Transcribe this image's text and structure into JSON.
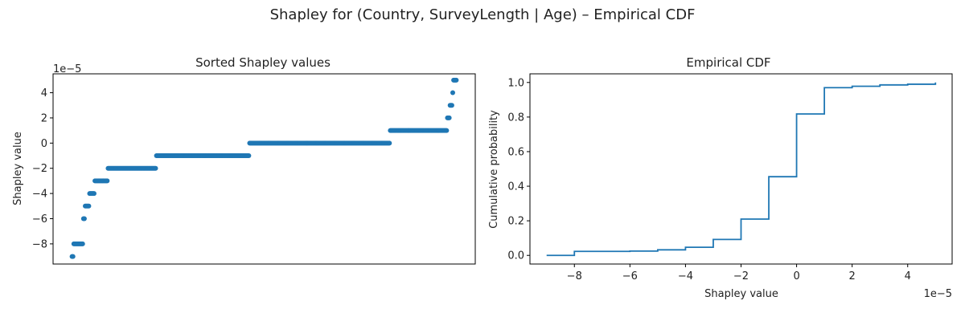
{
  "figure": {
    "title": "Shapley for (Country, SurveyLength | Age) – Empirical CDF"
  },
  "chart_data": [
    {
      "type": "scatter",
      "title": "Sorted Shapley values",
      "xlabel": "",
      "ylabel": "Shapley value",
      "y_offset_text": "1e−5",
      "y_scale_factor": "1e-5",
      "xticks": "hidden",
      "ylim": [
        -9.6,
        5.5
      ],
      "yticks": [
        -8,
        -6,
        -4,
        -2,
        0,
        2,
        4
      ],
      "ytick_labels": [
        "−8",
        "−6",
        "−4",
        "−2",
        "0",
        "2",
        "4"
      ],
      "color": "#1f77b4",
      "sorted_counts": [
        {
          "value": -9,
          "count": 2
        },
        {
          "value": -8,
          "count": 11
        },
        {
          "value": -6,
          "count": 2
        },
        {
          "value": -5,
          "count": 5
        },
        {
          "value": -4,
          "count": 6
        },
        {
          "value": -3,
          "count": 15
        },
        {
          "value": -2,
          "count": 55
        },
        {
          "value": -1,
          "count": 106
        },
        {
          "value": 0,
          "count": 160
        },
        {
          "value": 1,
          "count": 65
        },
        {
          "value": 2,
          "count": 3
        },
        {
          "value": 3,
          "count": 3
        },
        {
          "value": 4,
          "count": 1
        },
        {
          "value": 5,
          "count": 4
        }
      ],
      "grid": false
    },
    {
      "type": "line",
      "step": "post",
      "title": "Empirical CDF",
      "xlabel": "Shapley value",
      "ylabel": "Cumulative probability",
      "x_offset_text": "1e−5",
      "x_scale_factor": "1e-5",
      "xlim": [
        -9.6,
        5.6
      ],
      "ylim": [
        -0.05,
        1.05
      ],
      "xticks": [
        -8,
        -6,
        -4,
        -2,
        0,
        2,
        4
      ],
      "xtick_labels": [
        "−8",
        "−6",
        "−4",
        "−2",
        "0",
        "2",
        "4"
      ],
      "yticks": [
        0.0,
        0.2,
        0.4,
        0.6,
        0.8,
        1.0
      ],
      "ytick_labels": [
        "0.0",
        "0.2",
        "0.4",
        "0.6",
        "0.8",
        "1.0"
      ],
      "color": "#1f77b4",
      "x": [
        -9,
        -8,
        -6,
        -5,
        -4,
        -3,
        -2,
        -1,
        0,
        1,
        2,
        3,
        4,
        5,
        5
      ],
      "y": [
        0.0,
        0.023,
        0.025,
        0.032,
        0.047,
        0.092,
        0.21,
        0.455,
        0.818,
        0.97,
        0.978,
        0.986,
        0.99,
        0.99,
        1.0
      ],
      "grid": false
    }
  ]
}
